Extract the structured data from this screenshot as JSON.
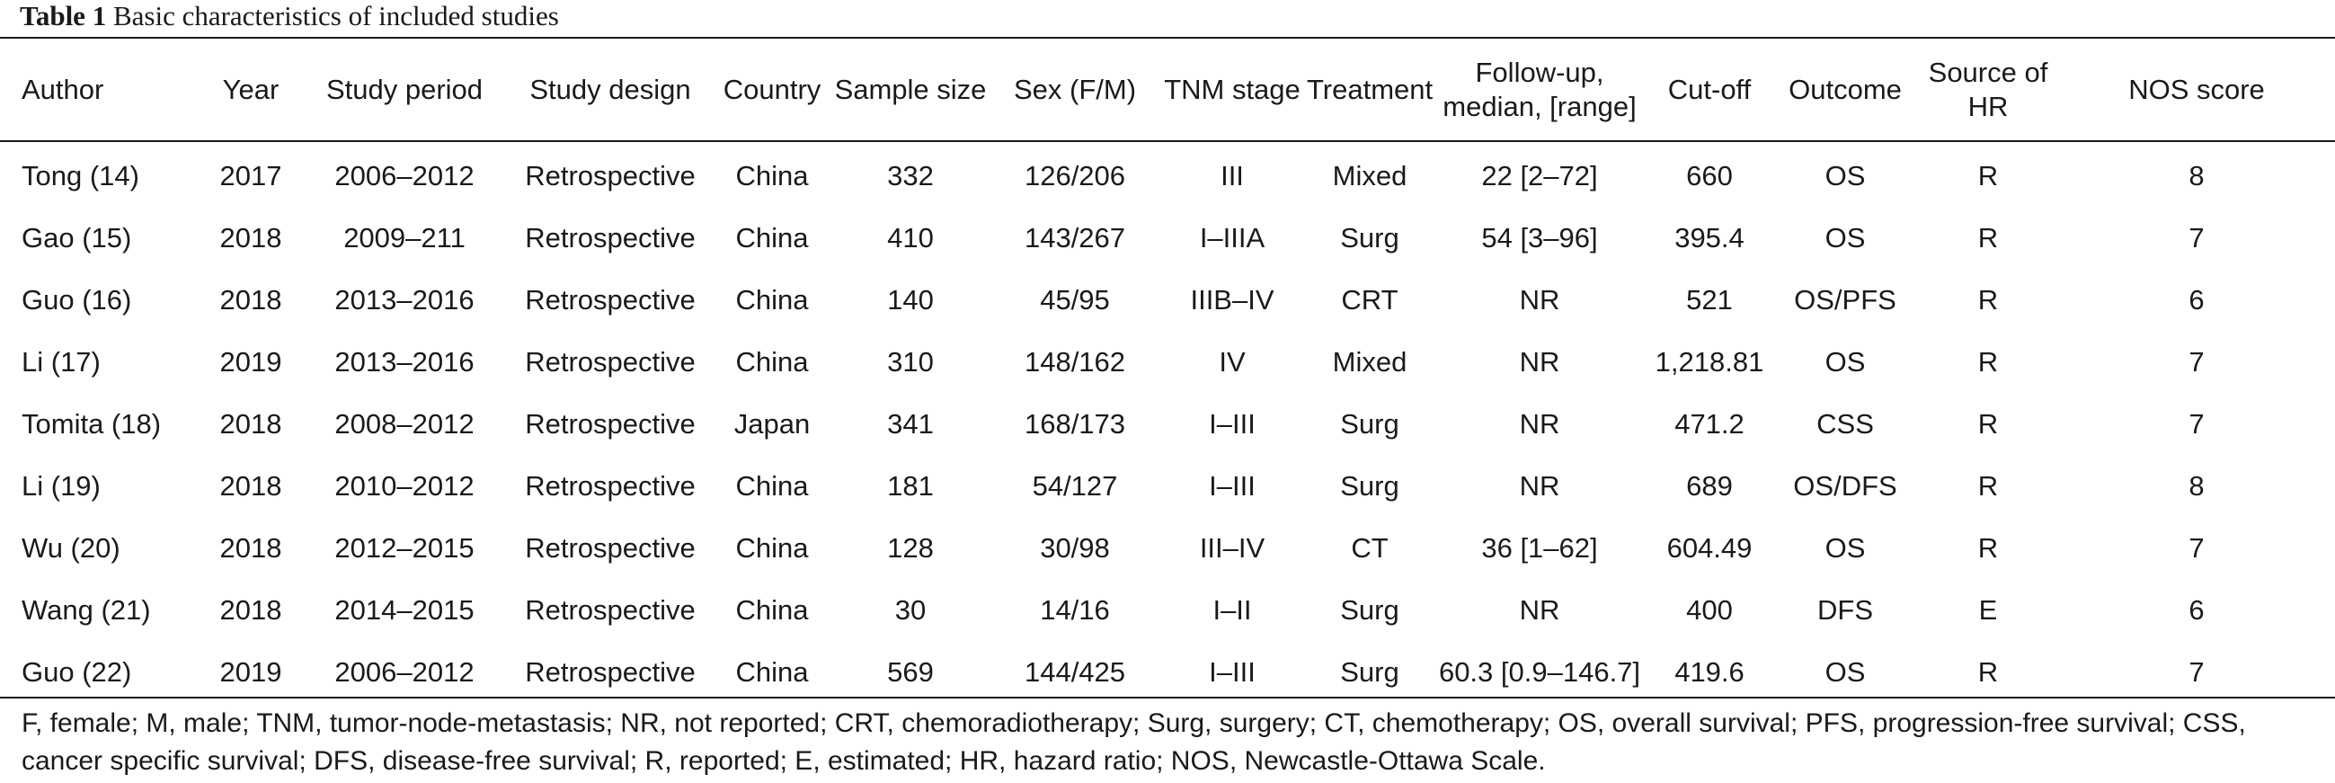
{
  "caption": {
    "label": "Table 1",
    "title": "Basic characteristics of included studies"
  },
  "columns": [
    "Author",
    "Year",
    "Study period",
    "Study design",
    "Country",
    "Sample size",
    "Sex (F/M)",
    "TNM stage",
    "Treatment",
    "Follow-up,\nmedian, [range]",
    "Cut-off",
    "Outcome",
    "Source of\nHR",
    "NOS score"
  ],
  "rows": [
    [
      "Tong (14)",
      "2017",
      "2006–2012",
      "Retrospective",
      "China",
      "332",
      "126/206",
      "III",
      "Mixed",
      "22 [2–72]",
      "660",
      "OS",
      "R",
      "8"
    ],
    [
      "Gao (15)",
      "2018",
      "2009–211",
      "Retrospective",
      "China",
      "410",
      "143/267",
      "I–IIIA",
      "Surg",
      "54 [3–96]",
      "395.4",
      "OS",
      "R",
      "7"
    ],
    [
      "Guo (16)",
      "2018",
      "2013–2016",
      "Retrospective",
      "China",
      "140",
      "45/95",
      "IIIB–IV",
      "CRT",
      "NR",
      "521",
      "OS/PFS",
      "R",
      "6"
    ],
    [
      "Li (17)",
      "2019",
      "2013–2016",
      "Retrospective",
      "China",
      "310",
      "148/162",
      "IV",
      "Mixed",
      "NR",
      "1,218.81",
      "OS",
      "R",
      "7"
    ],
    [
      "Tomita (18)",
      "2018",
      "2008–2012",
      "Retrospective",
      "Japan",
      "341",
      "168/173",
      "I–III",
      "Surg",
      "NR",
      "471.2",
      "CSS",
      "R",
      "7"
    ],
    [
      "Li (19)",
      "2018",
      "2010–2012",
      "Retrospective",
      "China",
      "181",
      "54/127",
      "I–III",
      "Surg",
      "NR",
      "689",
      "OS/DFS",
      "R",
      "8"
    ],
    [
      "Wu (20)",
      "2018",
      "2012–2015",
      "Retrospective",
      "China",
      "128",
      "30/98",
      "III–IV",
      "CT",
      "36 [1–62]",
      "604.49",
      "OS",
      "R",
      "7"
    ],
    [
      "Wang (21)",
      "2018",
      "2014–2015",
      "Retrospective",
      "China",
      "30",
      "14/16",
      "I–II",
      "Surg",
      "NR",
      "400",
      "DFS",
      "E",
      "6"
    ],
    [
      "Guo (22)",
      "2019",
      "2006–2012",
      "Retrospective",
      "China",
      "569",
      "144/425",
      "I–III",
      "Surg",
      "60.3 [0.9–146.7]",
      "419.6",
      "OS",
      "R",
      "7"
    ]
  ],
  "footnote": "F, female; M, male; TNM, tumor-node-metastasis; NR, not reported; CRT, chemoradiotherapy; Surg, surgery; CT, chemotherapy; OS, overall survival; PFS, progression-free survival; CSS, cancer specific survival; DFS, disease-free survival; R, reported; E, estimated; HR, hazard ratio; NOS, Newcastle-Ottawa Scale."
}
